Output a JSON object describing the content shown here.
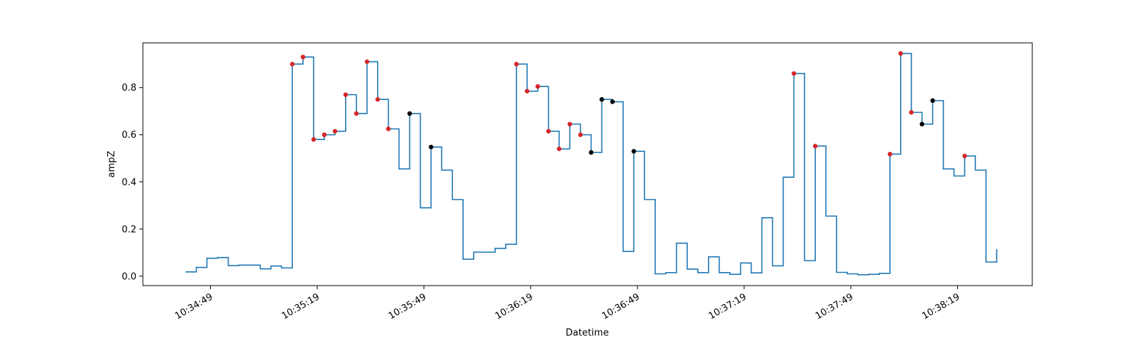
{
  "chart_data": {
    "type": "line",
    "xlabel": "Datetime",
    "ylabel": "ampZ",
    "x_unit": "HH:MM:SS",
    "xlim": [
      "10:34:30",
      "10:38:40"
    ],
    "ylim": [
      -0.04,
      0.99
    ],
    "x_ticks": [
      "10:34:49",
      "10:35:19",
      "10:35:49",
      "10:36:19",
      "10:36:49",
      "10:37:19",
      "10:37:49",
      "10:38:19"
    ],
    "y_ticks": [
      0.0,
      0.2,
      0.4,
      0.6,
      0.8
    ],
    "grid": false,
    "legend": "none",
    "colors": {
      "line": "#1f77b4",
      "marker_red": "#d62728",
      "marker_black": "#000000"
    },
    "series": [
      {
        "style": "step-post",
        "x": [
          "10:34:42",
          "10:34:45",
          "10:34:48",
          "10:34:51",
          "10:34:54",
          "10:34:57",
          "10:35:00",
          "10:35:03",
          "10:35:06",
          "10:35:09",
          "10:35:12",
          "10:35:15",
          "10:35:18",
          "10:35:21",
          "10:35:24",
          "10:35:27",
          "10:35:30",
          "10:35:33",
          "10:35:36",
          "10:35:39",
          "10:35:42",
          "10:35:45",
          "10:35:48",
          "10:35:51",
          "10:35:54",
          "10:35:57",
          "10:36:00",
          "10:36:03",
          "10:36:06",
          "10:36:09",
          "10:36:12",
          "10:36:15",
          "10:36:18",
          "10:36:21",
          "10:36:24",
          "10:36:27",
          "10:36:30",
          "10:36:33",
          "10:36:36",
          "10:36:39",
          "10:36:42",
          "10:36:45",
          "10:36:48",
          "10:36:51",
          "10:36:54",
          "10:36:57",
          "10:37:00",
          "10:37:03",
          "10:37:06",
          "10:37:09",
          "10:37:12",
          "10:37:15",
          "10:37:18",
          "10:37:21",
          "10:37:24",
          "10:37:27",
          "10:37:30",
          "10:37:33",
          "10:37:36",
          "10:37:39",
          "10:37:42",
          "10:37:45",
          "10:37:48",
          "10:37:51",
          "10:37:54",
          "10:37:57",
          "10:38:00",
          "10:38:03",
          "10:38:06",
          "10:38:09",
          "10:38:12",
          "10:38:15",
          "10:38:18",
          "10:38:21",
          "10:38:24",
          "10:38:27",
          "10:38:30"
        ],
        "y": [
          0.018,
          0.037,
          0.076,
          0.079,
          0.045,
          0.047,
          0.047,
          0.031,
          0.043,
          0.035,
          0.9,
          0.93,
          0.58,
          0.6,
          0.615,
          0.77,
          0.69,
          0.91,
          0.75,
          0.625,
          0.455,
          0.69,
          0.29,
          0.548,
          0.45,
          0.325,
          0.072,
          0.102,
          0.102,
          0.118,
          0.135,
          0.9,
          0.785,
          0.805,
          0.615,
          0.54,
          0.645,
          0.6,
          0.525,
          0.75,
          0.74,
          0.105,
          0.53,
          0.325,
          0.01,
          0.015,
          0.14,
          0.03,
          0.015,
          0.082,
          0.015,
          0.008,
          0.056,
          0.014,
          0.248,
          0.044,
          0.42,
          0.86,
          0.066,
          0.552,
          0.255,
          0.016,
          0.01,
          0.006,
          0.008,
          0.012,
          0.518,
          0.945,
          0.695,
          0.645,
          0.745,
          0.455,
          0.425,
          0.51,
          0.45,
          0.06,
          0.115
        ]
      }
    ],
    "markers": [
      {
        "x": "10:35:12",
        "y": 0.9,
        "color": "red"
      },
      {
        "x": "10:35:15",
        "y": 0.93,
        "color": "red"
      },
      {
        "x": "10:35:18",
        "y": 0.58,
        "color": "red"
      },
      {
        "x": "10:35:21",
        "y": 0.6,
        "color": "red"
      },
      {
        "x": "10:35:24",
        "y": 0.615,
        "color": "red"
      },
      {
        "x": "10:35:27",
        "y": 0.77,
        "color": "red"
      },
      {
        "x": "10:35:30",
        "y": 0.69,
        "color": "red"
      },
      {
        "x": "10:35:33",
        "y": 0.91,
        "color": "red"
      },
      {
        "x": "10:35:36",
        "y": 0.75,
        "color": "red"
      },
      {
        "x": "10:35:39",
        "y": 0.625,
        "color": "red"
      },
      {
        "x": "10:35:45",
        "y": 0.69,
        "color": "black"
      },
      {
        "x": "10:35:51",
        "y": 0.548,
        "color": "black"
      },
      {
        "x": "10:36:15",
        "y": 0.9,
        "color": "red"
      },
      {
        "x": "10:36:18",
        "y": 0.785,
        "color": "red"
      },
      {
        "x": "10:36:21",
        "y": 0.805,
        "color": "red"
      },
      {
        "x": "10:36:24",
        "y": 0.615,
        "color": "red"
      },
      {
        "x": "10:36:27",
        "y": 0.54,
        "color": "red"
      },
      {
        "x": "10:36:30",
        "y": 0.645,
        "color": "red"
      },
      {
        "x": "10:36:33",
        "y": 0.6,
        "color": "red"
      },
      {
        "x": "10:36:36",
        "y": 0.525,
        "color": "black"
      },
      {
        "x": "10:36:39",
        "y": 0.75,
        "color": "black"
      },
      {
        "x": "10:36:42",
        "y": 0.74,
        "color": "black"
      },
      {
        "x": "10:36:48",
        "y": 0.53,
        "color": "black"
      },
      {
        "x": "10:37:33",
        "y": 0.86,
        "color": "red"
      },
      {
        "x": "10:37:39",
        "y": 0.552,
        "color": "red"
      },
      {
        "x": "10:38:00",
        "y": 0.518,
        "color": "red"
      },
      {
        "x": "10:38:03",
        "y": 0.945,
        "color": "red"
      },
      {
        "x": "10:38:06",
        "y": 0.695,
        "color": "red"
      },
      {
        "x": "10:38:09",
        "y": 0.645,
        "color": "black"
      },
      {
        "x": "10:38:12",
        "y": 0.745,
        "color": "black"
      },
      {
        "x": "10:38:21",
        "y": 0.51,
        "color": "red"
      }
    ]
  }
}
